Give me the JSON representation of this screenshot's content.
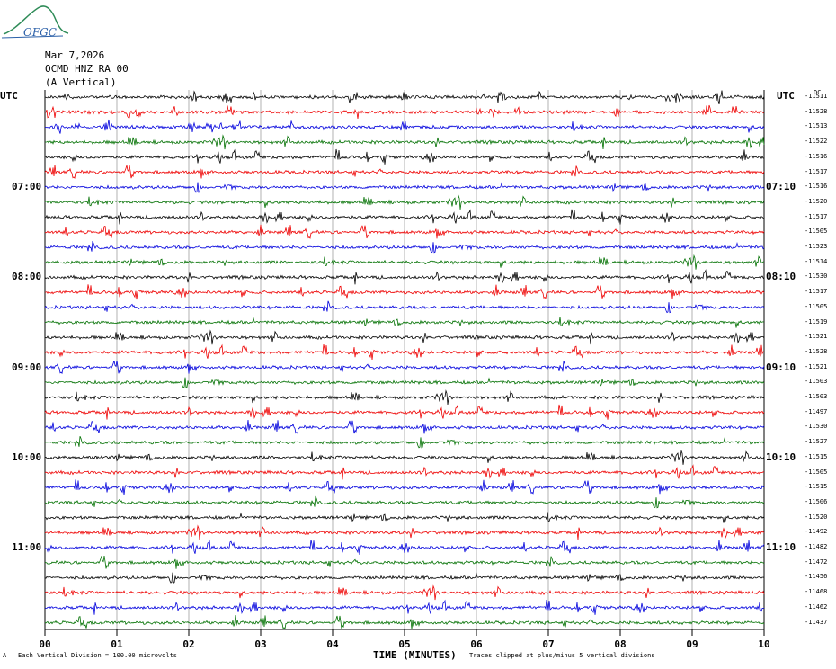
{
  "header": {
    "logo_text": "OFGC",
    "date": "Mar 7,2026",
    "station": "OCMD HNZ RA 00",
    "component": "(A Vertical)"
  },
  "chart_data": {
    "type": "line",
    "title": "Mar 7,2026",
    "xlabel": "TIME (MINUTES)",
    "ylabel": "",
    "xlim": [
      0,
      10
    ],
    "x_ticks": [
      "00",
      "01",
      "02",
      "03",
      "04",
      "05",
      "06",
      "07",
      "08",
      "09",
      "10"
    ],
    "grid": true,
    "left_axis_label": "UTC",
    "right_axis_label": "UTC",
    "offset_axis_label": "DC",
    "left_time_labels": [
      "07:00",
      "08:00",
      "09:00",
      "10:00",
      "11:00"
    ],
    "right_time_labels": [
      "07:10",
      "08:10",
      "09:10",
      "10:10",
      "11:10"
    ],
    "time_label_rows": [
      6,
      12,
      18,
      24,
      30
    ],
    "trace_colors": [
      "#000000",
      "#ee0000",
      "#0000dd",
      "#007000"
    ],
    "traces": 36,
    "trace_offsets": [
      "-11511",
      "-11528",
      "-11513",
      "-11522",
      "-11516",
      "-11517",
      "-11516",
      "-11520",
      "-11517",
      "-11505",
      "-11523",
      "-11514",
      "-11530",
      "-11517",
      "-11505",
      "-11519",
      "-11521",
      "-11528",
      "-11521",
      "-11503",
      "-11503",
      "-11497",
      "-11530",
      "-11527",
      "-11515",
      "-11505",
      "-11515",
      "-11506",
      "-11520",
      "-11492",
      "-11482",
      "-11472",
      "-11456",
      "-11468",
      "-11462",
      "-11437"
    ]
  },
  "footer": {
    "scale_marker": "A",
    "scale_note": "Each Vertical Division =  100.00 microvolts",
    "clip_note": "Traces clipped at plus/minus 5 vertical divisions"
  }
}
